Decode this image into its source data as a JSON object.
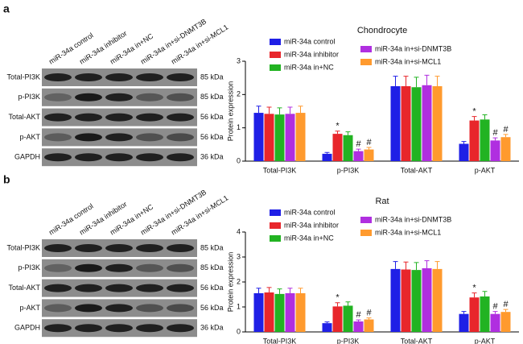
{
  "blots": [
    {
      "label": "a",
      "lanes": [
        "miR-34a control",
        "miR-34a inhibitor",
        "miR-34a in+NC",
        "miR-34a in+si-DNMT3B",
        "miR-34a in+si-MCL1"
      ],
      "rows": [
        {
          "name": "Total-PI3K",
          "kda": "85 kDa"
        },
        {
          "name": "p-PI3K",
          "kda": "85 kDa"
        },
        {
          "name": "Total-AKT",
          "kda": "56 kDa"
        },
        {
          "name": "p-AKT",
          "kda": "56 kDa"
        },
        {
          "name": "GAPDH",
          "kda": "36 kDa"
        }
      ]
    },
    {
      "label": "b",
      "lanes": [
        "miR-34a control",
        "miR-34a inhibitor",
        "miR-34a in+NC",
        "miR-34a in+si-DNMT3B",
        "miR-34a in+si-MCL1"
      ],
      "rows": [
        {
          "name": "Total-PI3K",
          "kda": "85 kDa"
        },
        {
          "name": "p-PI3K",
          "kda": "85 kDa"
        },
        {
          "name": "Total-AKT",
          "kda": "56 kDa"
        },
        {
          "name": "p-AKT",
          "kda": "56 kDa"
        },
        {
          "name": "GAPDH",
          "kda": "36 kDa"
        }
      ]
    }
  ],
  "chart_data": [
    {
      "type": "bar",
      "title": "Chondrocyte",
      "y_label": "Protein expression",
      "categories": [
        "Total-PI3K",
        "p-PI3K",
        "Total-AKT",
        "p-AKT"
      ],
      "ylim": [
        0,
        3
      ],
      "yticks": [
        0,
        1,
        2,
        3
      ],
      "series": [
        {
          "name": "miR-34a control",
          "color": "#1f1fe6",
          "values": [
            1.45,
            0.22,
            2.25,
            0.52
          ],
          "errors": [
            0.2,
            0.04,
            0.3,
            0.07
          ],
          "annotations": [
            null,
            null,
            null,
            null
          ]
        },
        {
          "name": "miR-34a inhibitor",
          "color": "#e8262b",
          "values": [
            1.42,
            0.82,
            2.25,
            1.22
          ],
          "errors": [
            0.2,
            0.08,
            0.3,
            0.12
          ],
          "annotations": [
            null,
            "*",
            null,
            "*"
          ]
        },
        {
          "name": "miR-34a in+NC",
          "color": "#22b322",
          "values": [
            1.4,
            0.78,
            2.22,
            1.25
          ],
          "errors": [
            0.2,
            0.1,
            0.3,
            0.14
          ],
          "annotations": [
            null,
            null,
            null,
            null
          ]
        },
        {
          "name": "miR-34a in+si-DNMT3B",
          "color": "#b02fe0",
          "values": [
            1.42,
            0.3,
            2.28,
            0.62
          ],
          "errors": [
            0.2,
            0.06,
            0.3,
            0.08
          ],
          "annotations": [
            null,
            "#",
            null,
            "#"
          ]
        },
        {
          "name": "miR-34a in+si-MCL1",
          "color": "#ff9a2e",
          "values": [
            1.45,
            0.35,
            2.25,
            0.72
          ],
          "errors": [
            0.2,
            0.06,
            0.3,
            0.08
          ],
          "annotations": [
            null,
            "#",
            null,
            "#"
          ]
        }
      ]
    },
    {
      "type": "bar",
      "title": "Rat",
      "y_label": "Protein expression",
      "categories": [
        "Total-PI3K",
        "p-PI3K",
        "Total-AKT",
        "p-AKT"
      ],
      "ylim": [
        0,
        4
      ],
      "yticks": [
        0,
        1,
        2,
        3,
        4
      ],
      "series": [
        {
          "name": "miR-34a control",
          "color": "#1f1fe6",
          "values": [
            1.55,
            0.35,
            2.52,
            0.72
          ],
          "errors": [
            0.2,
            0.05,
            0.3,
            0.1
          ],
          "annotations": [
            null,
            null,
            null,
            null
          ]
        },
        {
          "name": "miR-34a inhibitor",
          "color": "#e8262b",
          "values": [
            1.58,
            1.02,
            2.5,
            1.38
          ],
          "errors": [
            0.2,
            0.15,
            0.3,
            0.18
          ],
          "annotations": [
            null,
            "*",
            null,
            "*"
          ]
        },
        {
          "name": "miR-34a in+NC",
          "color": "#22b322",
          "values": [
            1.52,
            1.05,
            2.48,
            1.42
          ],
          "errors": [
            0.2,
            0.15,
            0.3,
            0.2
          ],
          "annotations": [
            null,
            null,
            null,
            null
          ]
        },
        {
          "name": "miR-34a in+si-DNMT3B",
          "color": "#b02fe0",
          "values": [
            1.55,
            0.42,
            2.55,
            0.72
          ],
          "errors": [
            0.2,
            0.06,
            0.3,
            0.1
          ],
          "annotations": [
            null,
            "#",
            null,
            "#"
          ]
        },
        {
          "name": "miR-34a in+si-MCL1",
          "color": "#ff9a2e",
          "values": [
            1.55,
            0.5,
            2.52,
            0.8
          ],
          "errors": [
            0.2,
            0.06,
            0.3,
            0.1
          ],
          "annotations": [
            null,
            "#",
            null,
            "#"
          ]
        }
      ]
    }
  ]
}
